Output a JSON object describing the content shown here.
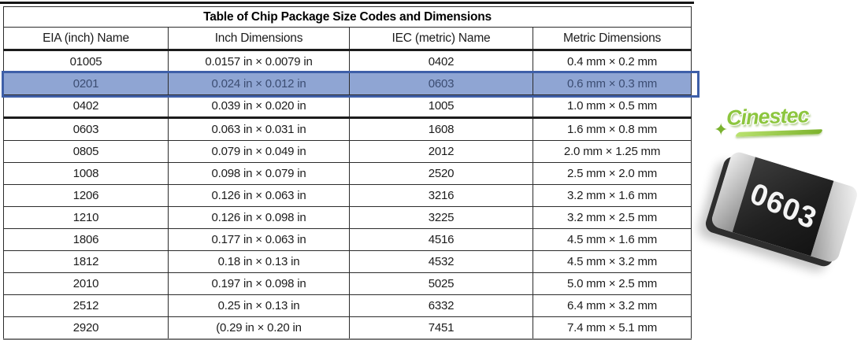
{
  "table": {
    "title": "Table of Chip Package Size Codes and Dimensions",
    "columns": [
      "EIA (inch) Name",
      "Inch Dimensions",
      "IEC (metric) Name",
      "Metric Dimensions"
    ],
    "rows": [
      {
        "eia": "01005",
        "inch": "0.0157 in × 0.0079 in",
        "iec": "0402",
        "metric": "0.4 mm × 0.2 mm",
        "highlighted": false,
        "thick_bottom_border": false
      },
      {
        "eia": "0201",
        "inch": "0.024 in × 0.012 in",
        "iec": "0603",
        "metric": "0.6 mm × 0.3 mm",
        "highlighted": true,
        "thick_bottom_border": false
      },
      {
        "eia": "0402",
        "inch": "0.039 in × 0.020 in",
        "iec": "1005",
        "metric": "1.0 mm × 0.5 mm",
        "highlighted": false,
        "thick_bottom_border": true
      },
      {
        "eia": "0603",
        "inch": "0.063 in × 0.031 in",
        "iec": "1608",
        "metric": "1.6 mm × 0.8 mm",
        "highlighted": false,
        "thick_bottom_border": false
      },
      {
        "eia": "0805",
        "inch": "0.079 in × 0.049 in",
        "iec": "2012",
        "metric": "2.0 mm × 1.25 mm",
        "highlighted": false,
        "thick_bottom_border": false
      },
      {
        "eia": "1008",
        "inch": "0.098 in × 0.079 in",
        "iec": "2520",
        "metric": "2.5 mm × 2.0 mm",
        "highlighted": false,
        "thick_bottom_border": false
      },
      {
        "eia": "1206",
        "inch": "0.126 in × 0.063 in",
        "iec": "3216",
        "metric": "3.2 mm × 1.6 mm",
        "highlighted": false,
        "thick_bottom_border": false
      },
      {
        "eia": "1210",
        "inch": "0.126 in × 0.098 in",
        "iec": "3225",
        "metric": "3.2 mm × 2.5 mm",
        "highlighted": false,
        "thick_bottom_border": false
      },
      {
        "eia": "1806",
        "inch": "0.177 in × 0.063 in",
        "iec": "4516",
        "metric": "4.5 mm × 1.6 mm",
        "highlighted": false,
        "thick_bottom_border": false
      },
      {
        "eia": "1812",
        "inch": "0.18 in × 0.13 in",
        "iec": "4532",
        "metric": "4.5 mm × 3.2 mm",
        "highlighted": false,
        "thick_bottom_border": false
      },
      {
        "eia": "2010",
        "inch": "0.197 in × 0.098 in",
        "iec": "5025",
        "metric": "5.0 mm × 2.5 mm",
        "highlighted": false,
        "thick_bottom_border": false
      },
      {
        "eia": "2512",
        "inch": "0.25 in × 0.13 in",
        "iec": "6332",
        "metric": "6.4 mm × 3.2 mm",
        "highlighted": false,
        "thick_bottom_border": false
      },
      {
        "eia": "2920",
        "inch": "(0.29 in × 0.20 in",
        "iec": "7451",
        "metric": "7.4 mm × 5.1 mm",
        "highlighted": false,
        "thick_bottom_border": false
      }
    ],
    "highlight_fill_color": "#8fa5d3",
    "highlight_border_color": "#3e5fa8",
    "text_color": "#1c1c1c"
  },
  "logo": {
    "text": "Cinestec",
    "color": "#8dc63f"
  },
  "chip_photo": {
    "label": "0603",
    "body_color": "#202020",
    "terminal_color": "#c9c9c9"
  }
}
